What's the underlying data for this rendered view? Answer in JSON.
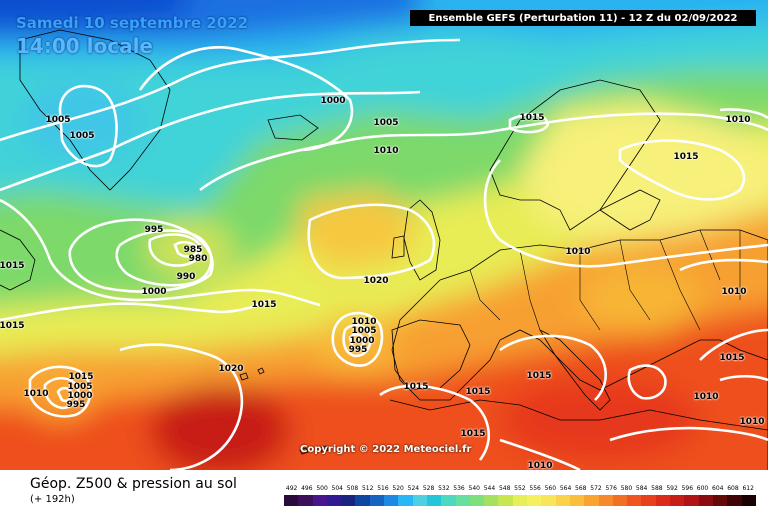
{
  "header": {
    "date": "Samedi 10 septembre 2022",
    "local_time": "14:00 locale",
    "model_run": "Ensemble GEFS  (Perturbation 11)  -  12 Z du 02/09/2022"
  },
  "copyright": "Copyright © 2022 Meteociel.fr",
  "footer": {
    "title": "Géop. Z500 & pression au sol",
    "lead": "(+ 192h)"
  },
  "isobar_labels": [
    {
      "text": "1005"
    },
    {
      "text": "1005"
    },
    {
      "text": "1000"
    },
    {
      "text": "1005"
    },
    {
      "text": "1010"
    },
    {
      "text": "1015"
    },
    {
      "text": "1010"
    },
    {
      "text": "1015"
    },
    {
      "text": "995"
    },
    {
      "text": "985"
    },
    {
      "text": "980"
    },
    {
      "text": "990"
    },
    {
      "text": "1000"
    },
    {
      "text": "1015"
    },
    {
      "text": "1015"
    },
    {
      "text": "1020"
    },
    {
      "text": "1010"
    },
    {
      "text": "1015"
    },
    {
      "text": "1010"
    },
    {
      "text": "1005"
    },
    {
      "text": "1000"
    },
    {
      "text": "995"
    },
    {
      "text": "1020"
    },
    {
      "text": "1015"
    },
    {
      "text": "1015"
    },
    {
      "text": "1015"
    },
    {
      "text": "1015"
    },
    {
      "text": "1010"
    },
    {
      "text": "1015"
    },
    {
      "text": "1010"
    },
    {
      "text": "1005"
    },
    {
      "text": "1000"
    },
    {
      "text": "995"
    },
    {
      "text": "1010"
    },
    {
      "text": "1015"
    },
    {
      "text": "1010"
    },
    {
      "text": "1010"
    }
  ],
  "colors": {
    "z500_scale": [
      "#2a0a3a",
      "#3c0f5a",
      "#4a148c",
      "#311b92",
      "#1a237e",
      "#0d47a1",
      "#1565c0",
      "#1e88e5",
      "#29b6f6",
      "#4dd0e1",
      "#26c6da",
      "#4dd9c0",
      "#66e0a0",
      "#7ee07a",
      "#a5e060",
      "#c8e650",
      "#e6ee58",
      "#f4f060",
      "#f8e55a",
      "#fbd34a",
      "#fbbd3c",
      "#f9a431",
      "#f68a2a",
      "#f36f24",
      "#ef5520",
      "#e8401c",
      "#d92c1a",
      "#c81e18",
      "#b01414",
      "#8a0c10",
      "#650808",
      "#400404",
      "#1a0000"
    ]
  },
  "scale_labels": [
    "492",
    "496",
    "500",
    "504",
    "508",
    "512",
    "516",
    "520",
    "524",
    "528",
    "532",
    "536",
    "540",
    "544",
    "548",
    "552",
    "556",
    "560",
    "564",
    "568",
    "572",
    "576",
    "580",
    "584",
    "588",
    "592",
    "596",
    "600",
    "604",
    "608",
    "612"
  ]
}
